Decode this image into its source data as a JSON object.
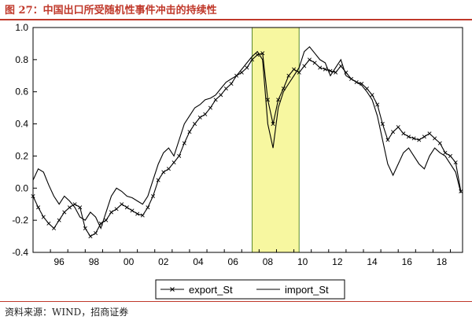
{
  "header": {
    "title": "图 27：中国出口所受随机性事件冲击的持续性"
  },
  "footer": {
    "source": "资料来源：WIND，招商证券"
  },
  "colors": {
    "title": "#c0392b",
    "highlight_fill": "#f7f7a0",
    "highlight_stroke": "#5a8a2a",
    "line": "#000000"
  },
  "chart_data": {
    "type": "line",
    "title": "",
    "xlabel": "",
    "ylabel": "",
    "xlim": [
      1995.0,
      2019.7
    ],
    "ylim": [
      -0.4,
      1.0
    ],
    "y_ticks": [
      -0.4,
      -0.2,
      0.0,
      0.2,
      0.4,
      0.6,
      0.8,
      1.0
    ],
    "y_tick_labels": [
      "-0.4",
      "-0.2",
      "0.0",
      "0.2",
      "0.4",
      "0.6",
      "0.8",
      "1.0"
    ],
    "x_ticks": [
      1996,
      1998,
      2000,
      2002,
      2004,
      2006,
      2008,
      2010,
      2012,
      2014,
      2016,
      2018
    ],
    "x_tick_labels": [
      "96",
      "98",
      "00",
      "02",
      "04",
      "06",
      "08",
      "10",
      "12",
      "14",
      "16",
      "18"
    ],
    "grid": false,
    "legend_position": "bottom",
    "highlight_band": {
      "x_start": 2007.6,
      "x_end": 2010.3
    },
    "series": [
      {
        "name": "export_St",
        "marker": "x",
        "x": [
          1995.0,
          1995.3,
          1995.6,
          1995.9,
          1996.2,
          1996.5,
          1996.8,
          1997.1,
          1997.4,
          1997.7,
          1998.0,
          1998.3,
          1998.6,
          1998.9,
          1999.2,
          1999.5,
          1999.8,
          2000.1,
          2000.4,
          2000.7,
          2001.0,
          2001.3,
          2001.6,
          2001.9,
          2002.2,
          2002.5,
          2002.8,
          2003.1,
          2003.4,
          2003.7,
          2004.0,
          2004.3,
          2004.6,
          2004.9,
          2005.2,
          2005.5,
          2005.8,
          2006.1,
          2006.4,
          2006.7,
          2007.0,
          2007.3,
          2007.6,
          2007.9,
          2008.2,
          2008.5,
          2008.8,
          2009.1,
          2009.4,
          2009.7,
          2010.0,
          2010.3,
          2010.6,
          2010.9,
          2011.2,
          2011.5,
          2011.8,
          2012.1,
          2012.4,
          2012.7,
          2013.0,
          2013.3,
          2013.6,
          2013.9,
          2014.2,
          2014.5,
          2014.8,
          2015.1,
          2015.4,
          2015.7,
          2016.0,
          2016.3,
          2016.6,
          2016.9,
          2017.2,
          2017.5,
          2017.8,
          2018.1,
          2018.4,
          2018.7,
          2019.0,
          2019.3,
          2019.6
        ],
        "values": [
          -0.05,
          -0.12,
          -0.18,
          -0.22,
          -0.25,
          -0.2,
          -0.15,
          -0.12,
          -0.1,
          -0.12,
          -0.25,
          -0.3,
          -0.28,
          -0.22,
          -0.2,
          -0.15,
          -0.13,
          -0.1,
          -0.12,
          -0.14,
          -0.16,
          -0.17,
          -0.12,
          -0.05,
          0.05,
          0.1,
          0.12,
          0.16,
          0.2,
          0.28,
          0.35,
          0.4,
          0.44,
          0.46,
          0.5,
          0.55,
          0.58,
          0.62,
          0.65,
          0.7,
          0.72,
          0.75,
          0.8,
          0.83,
          0.84,
          0.55,
          0.4,
          0.55,
          0.62,
          0.7,
          0.74,
          0.72,
          0.76,
          0.8,
          0.78,
          0.75,
          0.74,
          0.73,
          0.72,
          0.76,
          0.72,
          0.68,
          0.66,
          0.65,
          0.62,
          0.58,
          0.52,
          0.4,
          0.3,
          0.35,
          0.38,
          0.34,
          0.32,
          0.31,
          0.3,
          0.32,
          0.34,
          0.31,
          0.28,
          0.22,
          0.2,
          0.16,
          -0.02
        ]
      },
      {
        "name": "import_St",
        "marker": "none",
        "x": [
          1995.0,
          1995.3,
          1995.6,
          1995.9,
          1996.2,
          1996.5,
          1996.8,
          1997.1,
          1997.4,
          1997.7,
          1998.0,
          1998.3,
          1998.6,
          1998.9,
          1999.2,
          1999.5,
          1999.8,
          2000.1,
          2000.4,
          2000.7,
          2001.0,
          2001.3,
          2001.6,
          2001.9,
          2002.2,
          2002.5,
          2002.8,
          2003.1,
          2003.4,
          2003.7,
          2004.0,
          2004.3,
          2004.6,
          2004.9,
          2005.2,
          2005.5,
          2005.8,
          2006.1,
          2006.4,
          2006.7,
          2007.0,
          2007.3,
          2007.6,
          2007.9,
          2008.2,
          2008.5,
          2008.8,
          2009.1,
          2009.4,
          2009.7,
          2010.0,
          2010.3,
          2010.6,
          2010.9,
          2011.2,
          2011.5,
          2011.8,
          2012.1,
          2012.4,
          2012.7,
          2013.0,
          2013.3,
          2013.6,
          2013.9,
          2014.2,
          2014.5,
          2014.8,
          2015.1,
          2015.4,
          2015.7,
          2016.0,
          2016.3,
          2016.6,
          2016.9,
          2017.2,
          2017.5,
          2017.8,
          2018.1,
          2018.4,
          2018.7,
          2019.0,
          2019.3,
          2019.6
        ],
        "values": [
          0.05,
          0.12,
          0.1,
          0.02,
          -0.05,
          -0.1,
          -0.05,
          -0.08,
          -0.12,
          -0.18,
          -0.2,
          -0.15,
          -0.18,
          -0.25,
          -0.15,
          -0.05,
          0.0,
          -0.02,
          -0.05,
          -0.06,
          -0.08,
          -0.1,
          -0.05,
          0.05,
          0.15,
          0.22,
          0.25,
          0.2,
          0.3,
          0.4,
          0.45,
          0.5,
          0.52,
          0.55,
          0.56,
          0.58,
          0.62,
          0.66,
          0.68,
          0.7,
          0.74,
          0.78,
          0.82,
          0.85,
          0.8,
          0.4,
          0.25,
          0.5,
          0.6,
          0.65,
          0.7,
          0.75,
          0.85,
          0.88,
          0.84,
          0.8,
          0.78,
          0.7,
          0.75,
          0.8,
          0.7,
          0.68,
          0.66,
          0.64,
          0.6,
          0.55,
          0.45,
          0.3,
          0.15,
          0.08,
          0.15,
          0.22,
          0.25,
          0.2,
          0.15,
          0.12,
          0.2,
          0.25,
          0.22,
          0.2,
          0.15,
          0.1,
          -0.03
        ]
      }
    ]
  }
}
